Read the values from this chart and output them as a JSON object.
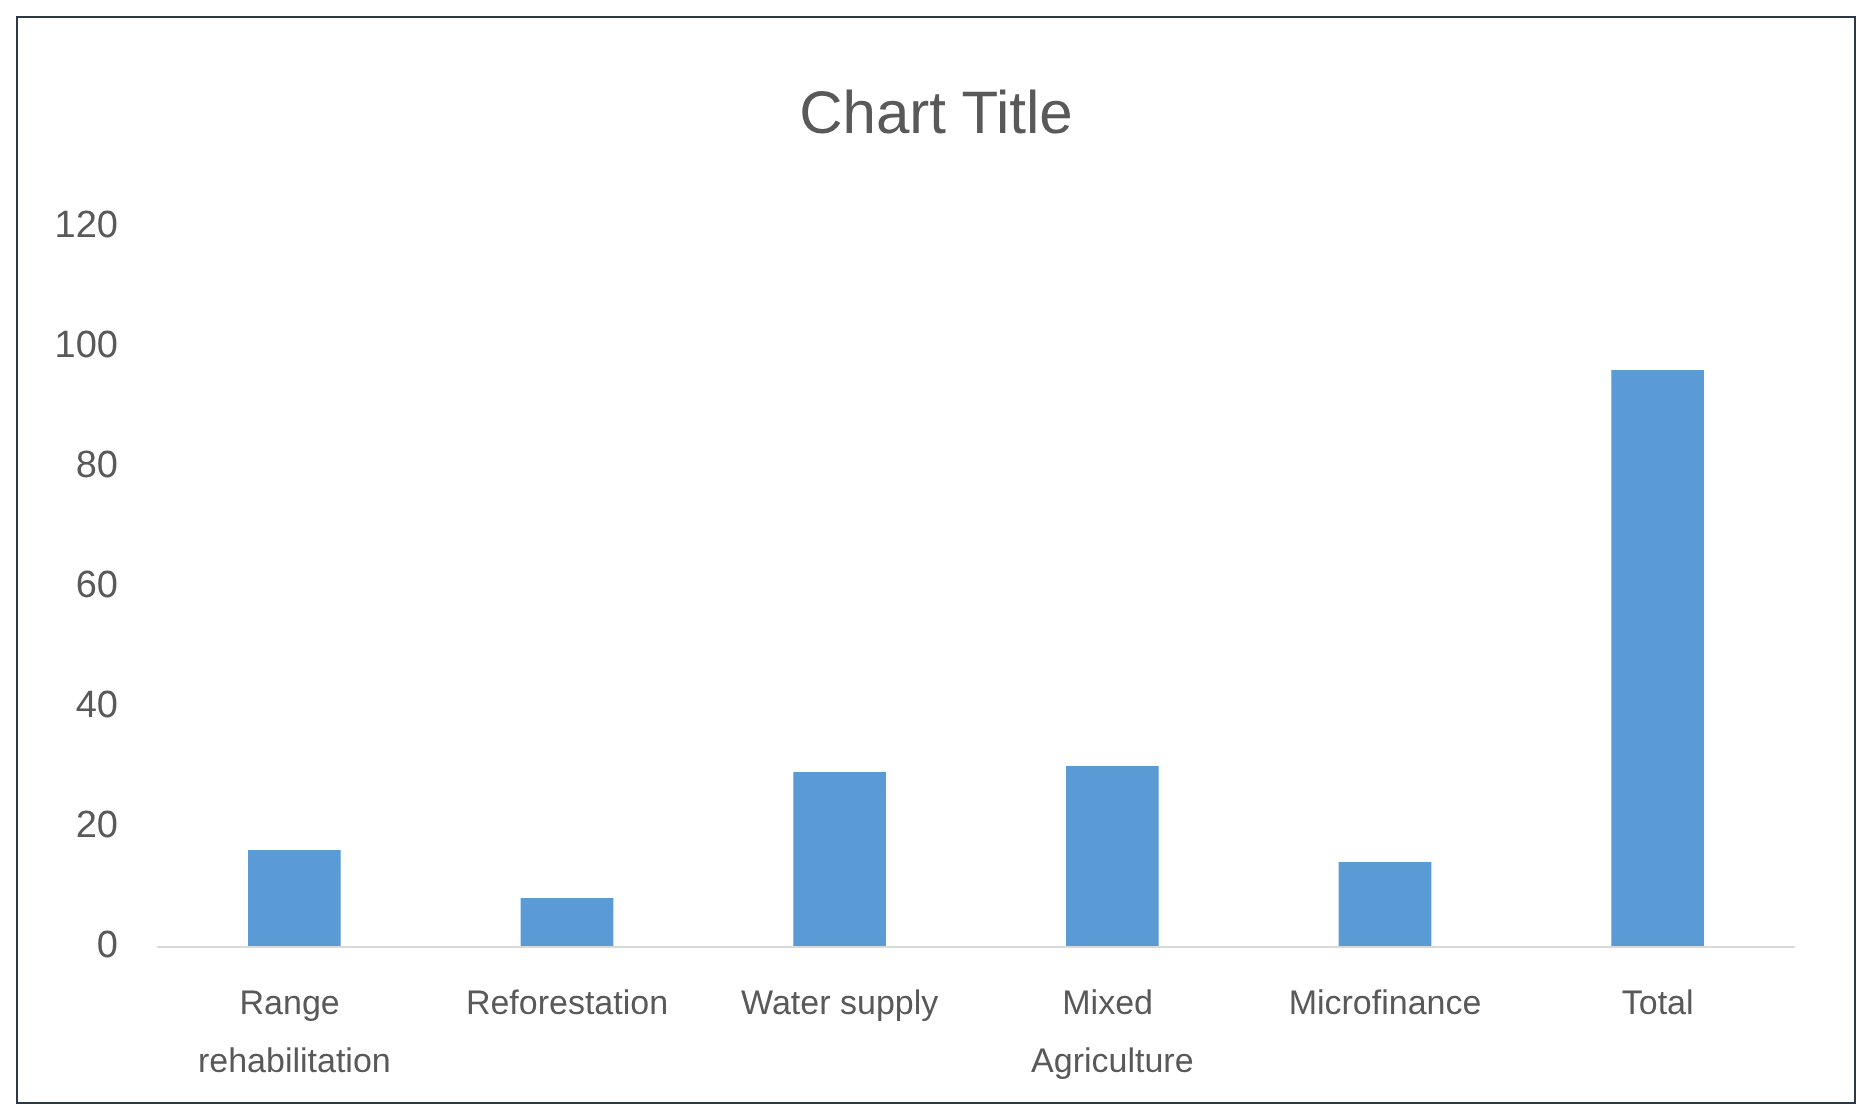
{
  "chart_data": {
    "type": "bar",
    "title": "Chart Title",
    "categories": [
      "Range rehabilitation",
      "Reforestation",
      "Water supply",
      "Mixed Agriculture",
      "Microfinance",
      "Total"
    ],
    "values": [
      16,
      8,
      29,
      30,
      14,
      96
    ],
    "color": "#5b9bd5",
    "ylim": [
      0,
      120
    ],
    "yticks": [
      0,
      20,
      40,
      60,
      80,
      100,
      120
    ],
    "grid": false
  }
}
